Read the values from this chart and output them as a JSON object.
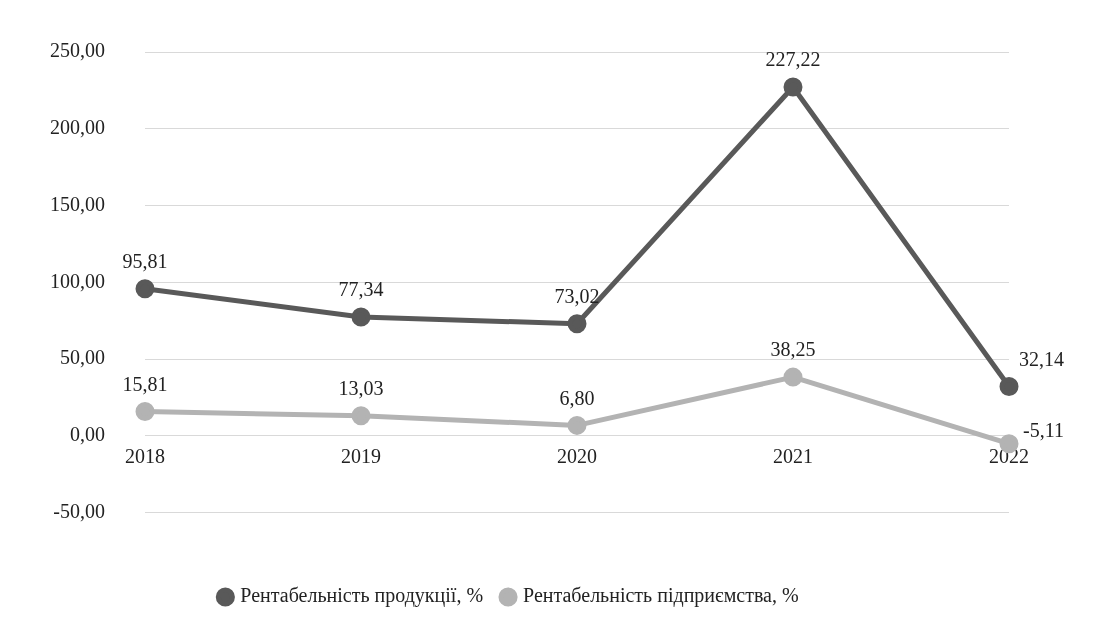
{
  "chart_data": {
    "type": "line",
    "categories": [
      "2018",
      "2019",
      "2020",
      "2021",
      "2022"
    ],
    "series": [
      {
        "name": "Рентабельність продукції, %",
        "color": "#595959",
        "values": [
          95.81,
          77.34,
          73.02,
          227.22,
          32.14
        ],
        "value_labels": [
          "95,81",
          "77,34",
          "73,02",
          "227,22",
          "32,14"
        ]
      },
      {
        "name": "Рентабельність підприємства, %",
        "color": "#b3b3b3",
        "values": [
          15.81,
          13.03,
          6.8,
          38.25,
          -5.11
        ],
        "value_labels": [
          "15,81",
          "13,03",
          "6,80",
          "38,25",
          "-5,11"
        ]
      }
    ],
    "ylim": [
      -50,
      250
    ],
    "yticks": [
      {
        "value": -50,
        "label": "-50,00"
      },
      {
        "value": 0,
        "label": "0,00"
      },
      {
        "value": 50,
        "label": "50,00"
      },
      {
        "value": 100,
        "label": "100,00"
      },
      {
        "value": 150,
        "label": "150,00"
      },
      {
        "value": 200,
        "label": "200,00"
      },
      {
        "value": 250,
        "label": "250,00"
      }
    ],
    "grid": "y",
    "legend": "bottom",
    "marker": "circle",
    "line_style": "solid"
  }
}
